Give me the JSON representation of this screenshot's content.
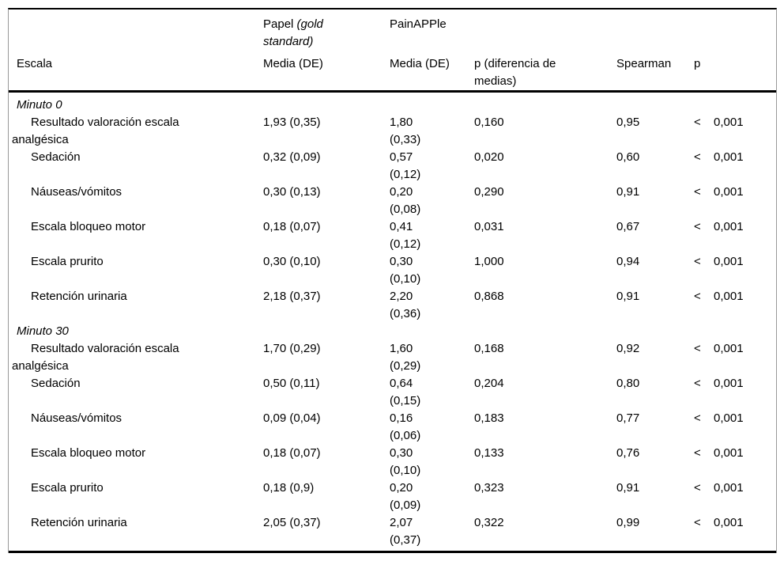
{
  "table": {
    "headers": {
      "escala": "Escala",
      "papel_group": "Papel",
      "papel_group_qualifier": "(gold standard)",
      "painapple_group": "PainAPPle",
      "papel_media": "Media (DE)",
      "painapple_media": "Media (DE)",
      "p_diff": "p (diferencia de medias)",
      "spearman": "Spearman",
      "p": "p"
    },
    "sections": [
      {
        "title": "Minuto 0",
        "rows": [
          {
            "escala": "Resultado valoración escala analgésica",
            "papel": "1,93 (0,35)",
            "painapple": "1,80 (0,33)",
            "p_diff": "0,160",
            "spearman": "0,95",
            "p_sign": "<",
            "p": "0,001"
          },
          {
            "escala": "Sedación",
            "papel": "0,32 (0,09)",
            "painapple": "0,57 (0,12)",
            "p_diff": "0,020",
            "spearman": "0,60",
            "p_sign": "<",
            "p": "0,001"
          },
          {
            "escala": "Náuseas/vómitos",
            "papel": "0,30 (0,13)",
            "painapple": "0,20 (0,08)",
            "p_diff": "0,290",
            "spearman": "0,91",
            "p_sign": "<",
            "p": "0,001"
          },
          {
            "escala": "Escala bloqueo motor",
            "papel": "0,18 (0,07)",
            "painapple": "0,41 (0,12)",
            "p_diff": "0,031",
            "spearman": "0,67",
            "p_sign": "<",
            "p": "0,001"
          },
          {
            "escala": "Escala prurito",
            "papel": "0,30 (0,10)",
            "painapple": "0,30 (0,10)",
            "p_diff": "1,000",
            "spearman": "0,94",
            "p_sign": "<",
            "p": "0,001"
          },
          {
            "escala": "Retención urinaria",
            "papel": "2,18 (0,37)",
            "painapple": "2,20 (0,36)",
            "p_diff": "0,868",
            "spearman": "0,91",
            "p_sign": "<",
            "p": "0,001"
          }
        ]
      },
      {
        "title": "Minuto 30",
        "rows": [
          {
            "escala": "Resultado valoración escala analgésica",
            "papel": "1,70 (0,29)",
            "painapple": "1,60 (0,29)",
            "p_diff": "0,168",
            "spearman": "0,92",
            "p_sign": "<",
            "p": "0,001"
          },
          {
            "escala": "Sedación",
            "papel": "0,50 (0,11)",
            "painapple": "0,64 (0,15)",
            "p_diff": "0,204",
            "spearman": "0,80",
            "p_sign": "<",
            "p": "0,001"
          },
          {
            "escala": "Náuseas/vómitos",
            "papel": "0,09 (0,04)",
            "painapple": "0,16 (0,06)",
            "p_diff": "0,183",
            "spearman": "0,77",
            "p_sign": "<",
            "p": "0,001"
          },
          {
            "escala": "Escala bloqueo motor",
            "papel": "0,18 (0,07)",
            "painapple": "0,30 (0,10)",
            "p_diff": "0,133",
            "spearman": "0,76",
            "p_sign": "<",
            "p": "0,001"
          },
          {
            "escala": "Escala prurito",
            "papel": "0,18 (0,9)",
            "painapple": "0,20 (0,09)",
            "p_diff": "0,323",
            "spearman": "0,91",
            "p_sign": "<",
            "p": "0,001"
          },
          {
            "escala": "Retención urinaria",
            "papel": "2,05 (0,37)",
            "painapple": "2,07 (0,37)",
            "p_diff": "0,322",
            "spearman": "0,99",
            "p_sign": "<",
            "p": "0,001"
          }
        ]
      }
    ]
  }
}
